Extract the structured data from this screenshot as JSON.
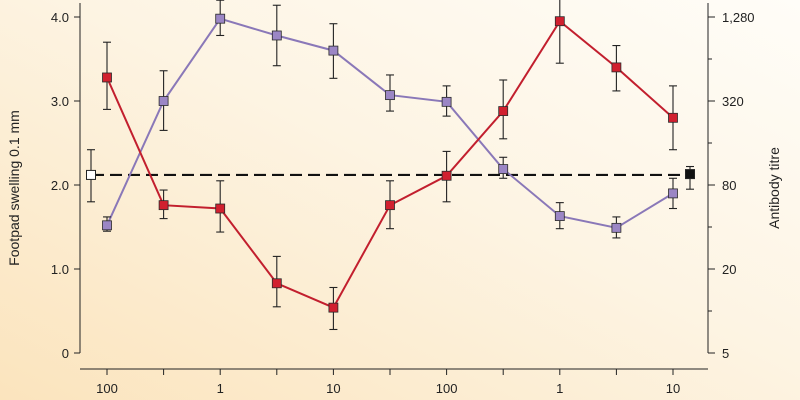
{
  "chart_data": {
    "type": "line",
    "title": "",
    "ylabel": "Footpad swelling 0.1 mm",
    "y2label": "Antibody titre",
    "x_tick_labels": [
      "100",
      "",
      "1",
      "",
      "10",
      "",
      "100",
      "",
      "1",
      "",
      "10"
    ],
    "ylim": [
      0,
      4.0
    ],
    "y_ticks": [
      {
        "value": 0,
        "label": "0"
      },
      {
        "value": 1.0,
        "label": "1.0"
      },
      {
        "value": 2.0,
        "label": "2.0"
      },
      {
        "value": 3.0,
        "label": "3.0"
      },
      {
        "value": 4.0,
        "label": "4.0"
      }
    ],
    "y2_ticks": [
      {
        "value": 0,
        "label": "5"
      },
      {
        "value": 1.0,
        "label": "20"
      },
      {
        "value": 2.0,
        "label": "80"
      },
      {
        "value": 3.0,
        "label": "320"
      },
      {
        "value": 4.0,
        "label": "1,280"
      }
    ],
    "y2_minor_ticks": [
      0.5,
      1.5,
      2.5,
      3.5
    ],
    "reference_line": {
      "value": 2.12,
      "style": "dashed"
    },
    "series": [
      {
        "name": "purple",
        "color": "#8a78b8",
        "marker_fill": "#9b86c5",
        "values": [
          1.52,
          3.0,
          3.98,
          3.78,
          3.6,
          3.07,
          2.99,
          2.19,
          1.63,
          1.49,
          1.9
        ],
        "err_low": [
          1.45,
          2.65,
          3.78,
          3.42,
          3.27,
          2.88,
          2.82,
          2.08,
          1.48,
          1.37,
          1.72
        ],
        "err_high": [
          1.62,
          3.36,
          4.2,
          4.14,
          3.92,
          3.31,
          3.18,
          2.33,
          1.79,
          1.62,
          2.08
        ]
      },
      {
        "name": "red",
        "color": "#c21f2e",
        "marker_fill": "#d1202f",
        "values": [
          3.28,
          1.76,
          1.72,
          0.83,
          0.54,
          1.76,
          2.11,
          2.88,
          3.95,
          3.4,
          2.8
        ],
        "err_low": [
          2.9,
          1.6,
          1.44,
          0.55,
          0.28,
          1.48,
          1.8,
          2.55,
          3.45,
          3.12,
          2.42
        ],
        "err_high": [
          3.7,
          1.94,
          2.05,
          1.15,
          0.78,
          2.05,
          2.4,
          3.25,
          4.35,
          3.66,
          3.18
        ]
      }
    ],
    "control_left": {
      "value": 2.12,
      "err_low": 1.8,
      "err_high": 2.42,
      "fill": "#ffffff"
    },
    "control_right": {
      "value": 2.13,
      "err_low": 1.95,
      "err_high": 2.22,
      "fill": "#111111"
    }
  }
}
